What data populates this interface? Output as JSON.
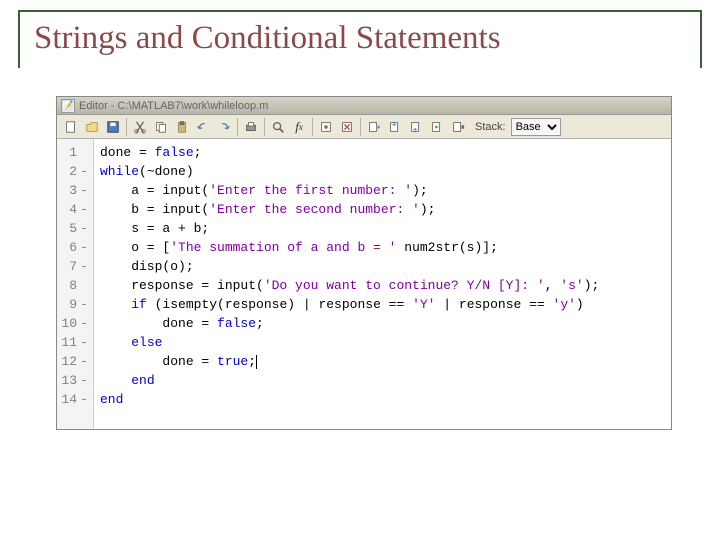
{
  "slide": {
    "title": "Strings and Conditional Statements",
    "title_color": "#8b4a4a",
    "frame_color": "#3a5f3a"
  },
  "editor": {
    "window_title": "Editor - C:\\MATLAB7\\work\\whileloop.m",
    "toolbar": {
      "stack_label": "Stack:",
      "stack_value": "Base"
    },
    "colors": {
      "keyword": "#0000cc",
      "string": "#8000a0",
      "text": "#000000",
      "gutter_bg": "#f4f4f4",
      "gutter_text": "#808080",
      "ui_bg": "#ece9d8"
    },
    "font": "Courier New",
    "font_size": 13,
    "lines": [
      {
        "n": 1,
        "dash": false,
        "seg": [
          [
            "",
            "done = "
          ],
          [
            "kw",
            "false"
          ],
          [
            "",
            ";"
          ]
        ]
      },
      {
        "n": 2,
        "dash": true,
        "seg": [
          [
            "kw",
            "while"
          ],
          [
            "",
            "(~done)"
          ]
        ]
      },
      {
        "n": 3,
        "dash": true,
        "seg": [
          [
            "",
            "    a = input("
          ],
          [
            "str",
            "'Enter the first number: '"
          ],
          [
            "",
            ");"
          ]
        ]
      },
      {
        "n": 4,
        "dash": true,
        "seg": [
          [
            "",
            "    b = input("
          ],
          [
            "str",
            "'Enter the second number: '"
          ],
          [
            "",
            ");"
          ]
        ]
      },
      {
        "n": 5,
        "dash": true,
        "seg": [
          [
            "",
            "    s = a + b;"
          ]
        ]
      },
      {
        "n": 6,
        "dash": true,
        "seg": [
          [
            "",
            "    o = ["
          ],
          [
            "str",
            "'The summation of a and b = '"
          ],
          [
            "",
            " num2str(s)];"
          ]
        ]
      },
      {
        "n": 7,
        "dash": true,
        "seg": [
          [
            "",
            "    disp(o);"
          ]
        ]
      },
      {
        "n": 8,
        "dash": false,
        "seg": [
          [
            "",
            "    response = input("
          ],
          [
            "str",
            "'Do you want to continue? Y/N [Y]: '"
          ],
          [
            "",
            ", "
          ],
          [
            "str",
            "'s'"
          ],
          [
            "",
            ");"
          ]
        ]
      },
      {
        "n": 9,
        "dash": true,
        "seg": [
          [
            "",
            "    "
          ],
          [
            "kw",
            "if"
          ],
          [
            "",
            " (isempty(response) | response == "
          ],
          [
            "str",
            "'Y'"
          ],
          [
            "",
            " | response == "
          ],
          [
            "str",
            "'y'"
          ],
          [
            "",
            ")"
          ]
        ]
      },
      {
        "n": 10,
        "dash": true,
        "seg": [
          [
            "",
            "        done = "
          ],
          [
            "kw",
            "false"
          ],
          [
            "",
            ";"
          ]
        ]
      },
      {
        "n": 11,
        "dash": true,
        "seg": [
          [
            "",
            "    "
          ],
          [
            "kw",
            "else"
          ]
        ]
      },
      {
        "n": 12,
        "dash": true,
        "seg": [
          [
            "",
            "        done = "
          ],
          [
            "kw",
            "true"
          ],
          [
            "",
            ";"
          ],
          [
            "cursor",
            ""
          ]
        ]
      },
      {
        "n": 13,
        "dash": true,
        "seg": [
          [
            "",
            "    "
          ],
          [
            "kw",
            "end"
          ]
        ]
      },
      {
        "n": 14,
        "dash": true,
        "seg": [
          [
            "kw",
            "end"
          ]
        ]
      }
    ]
  }
}
